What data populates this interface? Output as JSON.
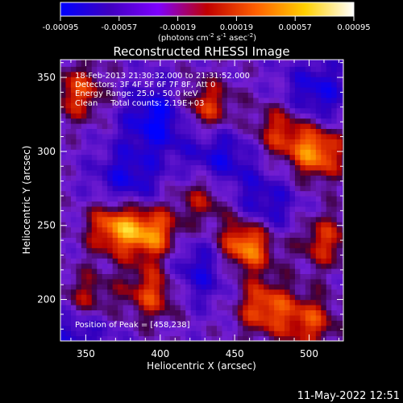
{
  "chart_data": {
    "type": "heatmap",
    "title": "Reconstructed RHESSI Image",
    "xlabel": "Heliocentric X (arcsec)",
    "ylabel": "Heliocentric Y (arcsec)",
    "xlim": [
      333,
      523
    ],
    "ylim": [
      172,
      362
    ],
    "x_ticks": [
      350,
      400,
      450,
      500
    ],
    "y_ticks": [
      200,
      250,
      300,
      350
    ],
    "colorbar": {
      "range": [
        -0.00095,
        0.00095
      ],
      "ticks": [
        "-0.00095",
        "-0.00057",
        "-0.00019",
        "0.00019",
        "0.00057",
        "0.00095"
      ],
      "unit_prefix": "(photons cm",
      "unit_sup1": "-2",
      "unit_mid1": " s",
      "unit_sup2": "-1",
      "unit_mid2": " asec",
      "unit_sup3": "-2",
      "unit_suffix": ")",
      "colors": [
        "#0000ff",
        "#3f00bf",
        "#7f00ff",
        "#c00000",
        "#ff6000",
        "#ffd000",
        "#ffffff"
      ]
    },
    "annotations": [
      "18-Feb-2013 21:30:32.000 to 21:31:52.000",
      "Detectors: 3F 4F 5F 6F 7F 8F, Att 0",
      "Energy Range: 25.0 - 50.0 keV",
      "Clean     Total counts: 2.19E+03"
    ],
    "peak_label": "Position of Peak = [458,238]",
    "sources": [
      {
        "x": 458,
        "y": 238,
        "intensity": 1.0
      },
      {
        "x": 370,
        "y": 250,
        "intensity": 0.85
      },
      {
        "x": 395,
        "y": 245,
        "intensity": 0.8
      },
      {
        "x": 505,
        "y": 300,
        "intensity": 0.85
      },
      {
        "x": 430,
        "y": 330,
        "intensity": 0.65
      },
      {
        "x": 480,
        "y": 315,
        "intensity": 0.55
      },
      {
        "x": 345,
        "y": 340,
        "intensity": 0.6
      },
      {
        "x": 395,
        "y": 205,
        "intensity": 0.65
      },
      {
        "x": 470,
        "y": 195,
        "intensity": 0.7
      },
      {
        "x": 510,
        "y": 240,
        "intensity": 0.55
      },
      {
        "x": 350,
        "y": 200,
        "intensity": 0.55
      },
      {
        "x": 430,
        "y": 270,
        "intensity": 0.5
      },
      {
        "x": 500,
        "y": 185,
        "intensity": 0.6
      }
    ],
    "cold_spots": [
      {
        "x": 398,
        "y": 322,
        "intensity": -0.7
      },
      {
        "x": 440,
        "y": 295,
        "intensity": -0.55
      },
      {
        "x": 470,
        "y": 262,
        "intensity": -0.5
      },
      {
        "x": 378,
        "y": 280,
        "intensity": -0.55
      },
      {
        "x": 425,
        "y": 220,
        "intensity": -0.5
      },
      {
        "x": 345,
        "y": 180,
        "intensity": -0.5
      },
      {
        "x": 505,
        "y": 340,
        "intensity": -0.55
      }
    ]
  },
  "footer": {
    "date": "11-May-2022 12:51"
  }
}
